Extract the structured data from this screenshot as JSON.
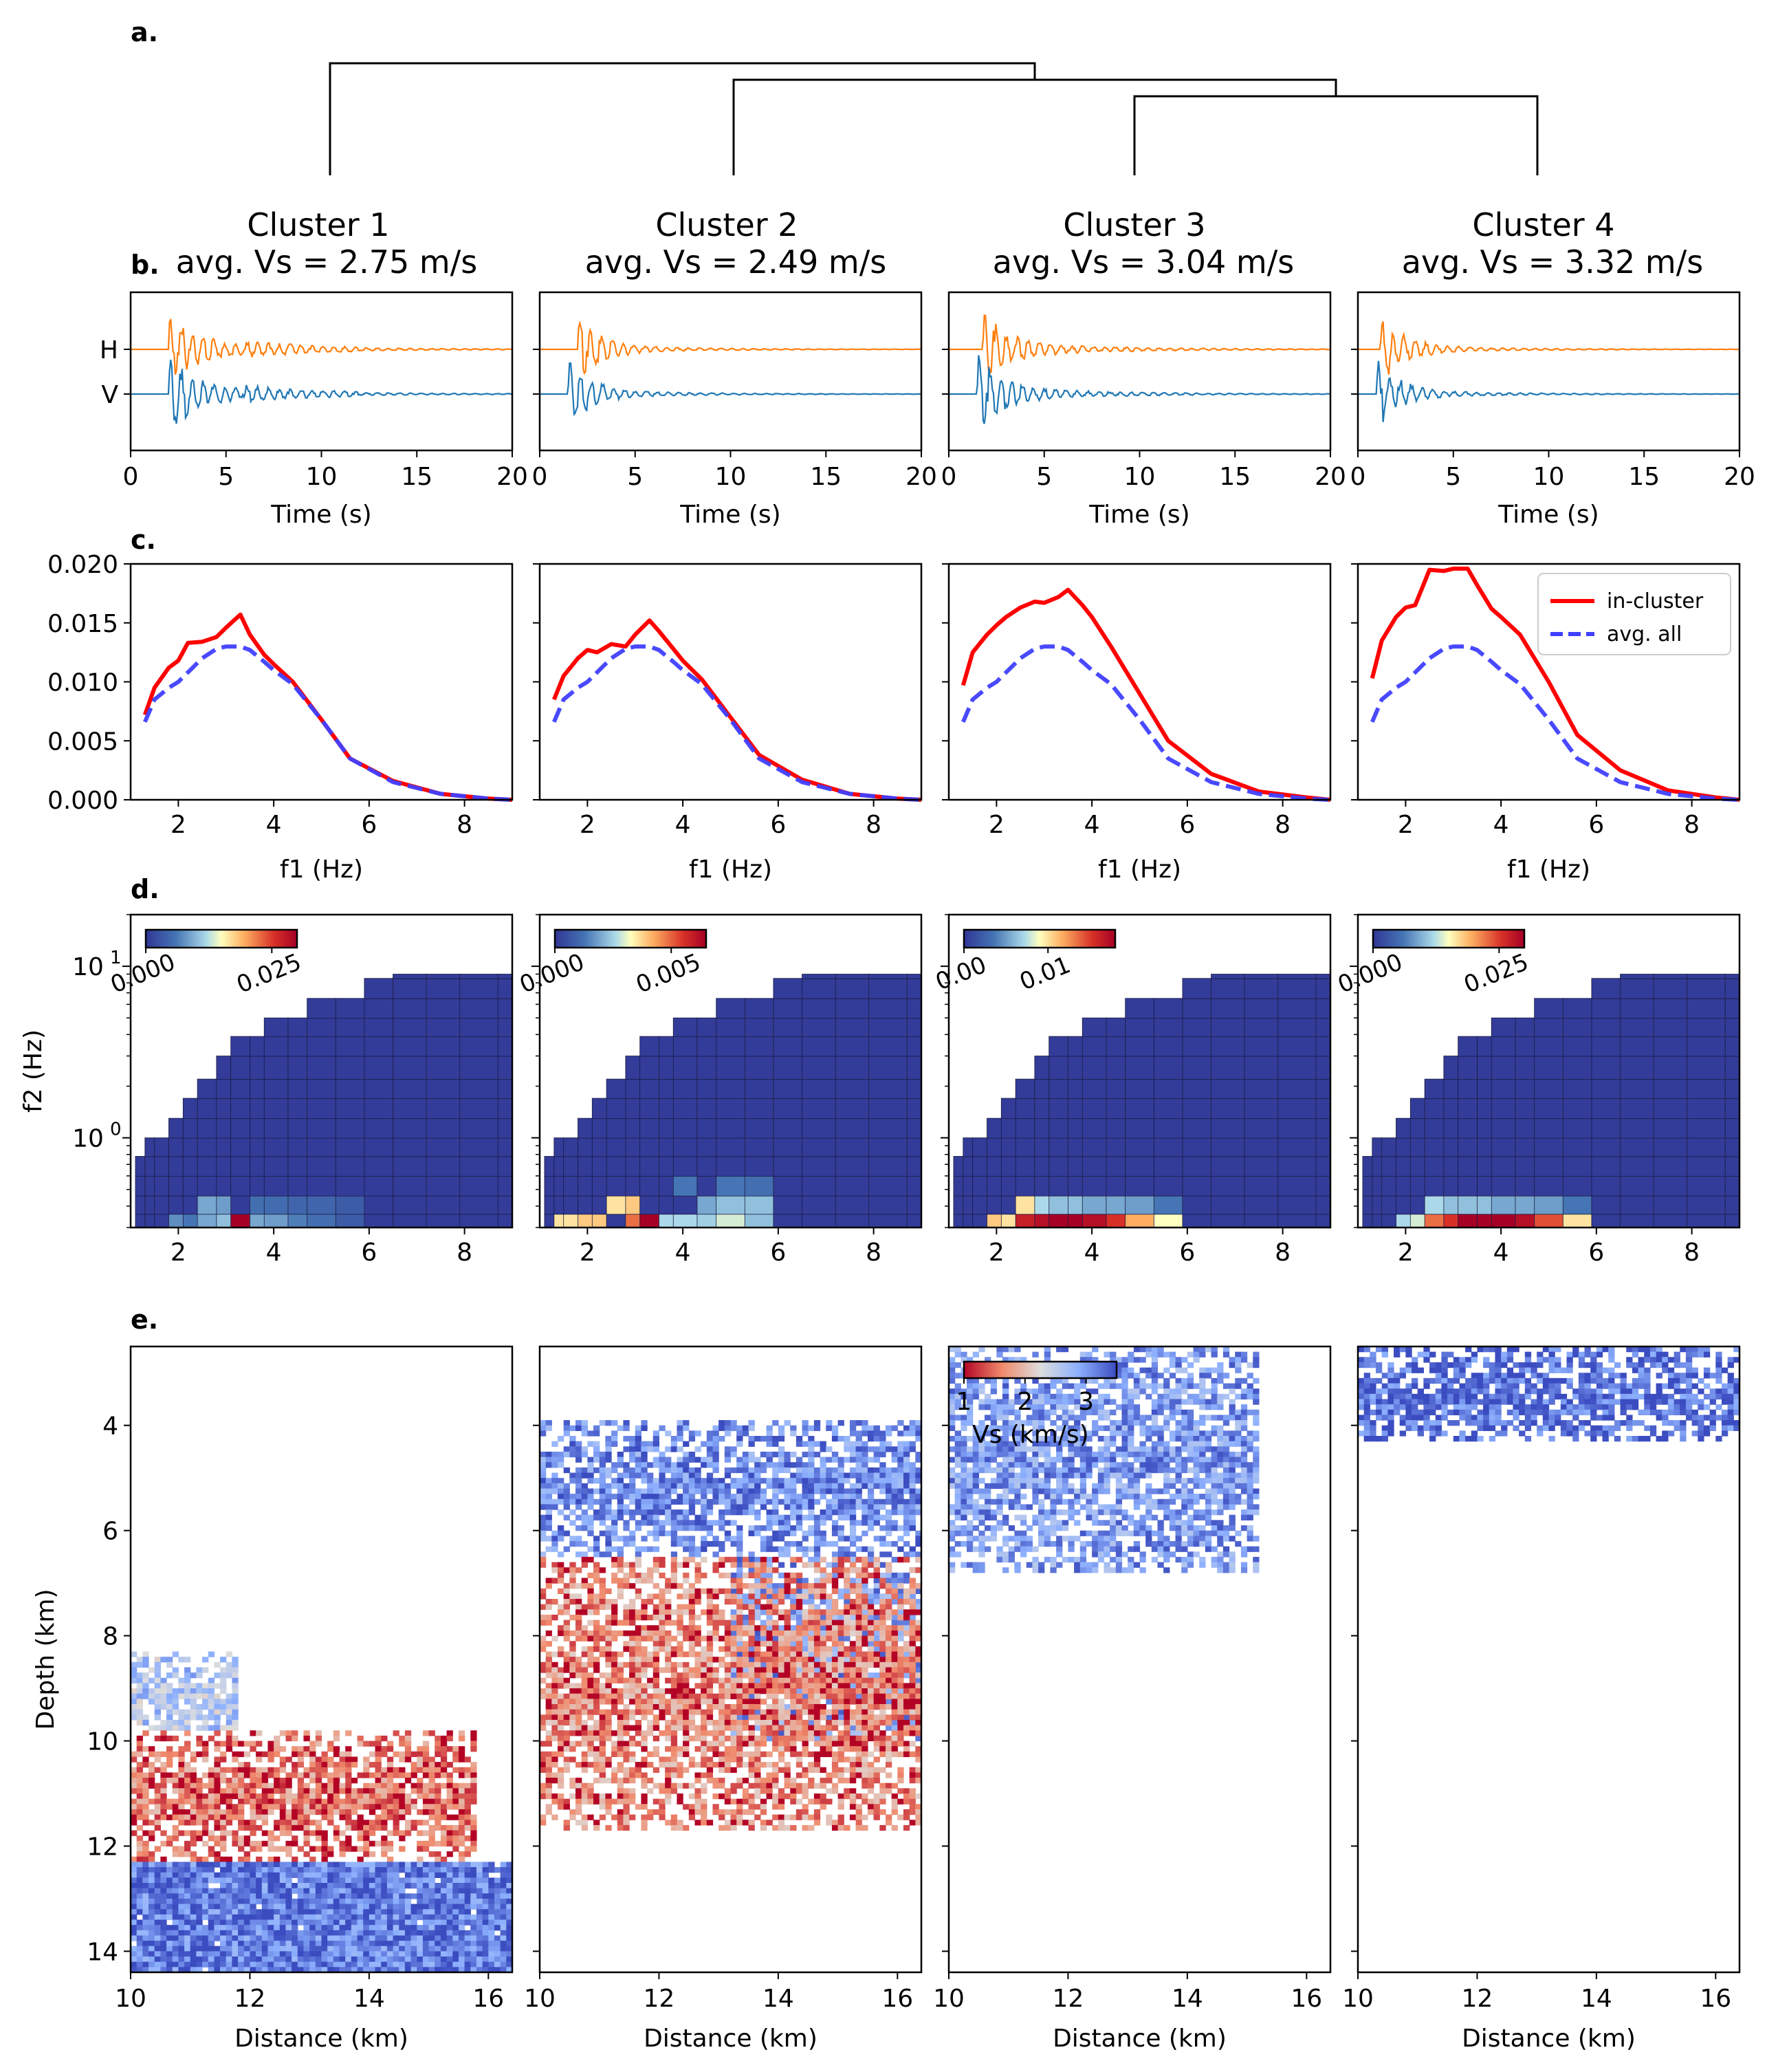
{
  "panel_labels": {
    "a": "a.",
    "b": "b.",
    "c": "c.",
    "d": "d.",
    "e": "e."
  },
  "clusters": [
    {
      "title": "Cluster 1",
      "subtitle": "avg. Vs = 2.75 m/s"
    },
    {
      "title": "Cluster 2",
      "subtitle": "avg. Vs = 2.49 m/s"
    },
    {
      "title": "Cluster 3",
      "subtitle": "avg. Vs = 3.04 m/s"
    },
    {
      "title": "Cluster 4",
      "subtitle": "avg. Vs = 3.32 m/s"
    }
  ],
  "colors": {
    "horizontal": "#ff7f0e",
    "vertical": "#1f77b4",
    "in_cluster": "#ff0000",
    "avg_all": "#3f3fff"
  },
  "chart_data": [
    {
      "type": "dendrogram",
      "leaves": [
        "Cluster 1",
        "Cluster 2",
        "Cluster 3",
        "Cluster 4"
      ],
      "merges": [
        {
          "join": [
            "Cluster 3",
            "Cluster 4"
          ],
          "height": 0.52
        },
        {
          "join": [
            "Cluster 2",
            "Cluster 3+4"
          ],
          "height": 0.64
        },
        {
          "join": [
            "Cluster 1",
            "Cluster 2+3+4"
          ],
          "height": 0.73
        }
      ]
    },
    {
      "type": "line",
      "panel": "b",
      "title": "",
      "xlabel": "Time (s)",
      "xlim": [
        0,
        20
      ],
      "xticks": [
        "0",
        "5",
        "10",
        "15",
        "20"
      ],
      "yticklabels": [
        "H",
        "V"
      ],
      "series": [
        {
          "name": "H",
          "component": "horizontal",
          "onset_s": [
            2.0,
            2.0,
            1.8,
            1.2
          ]
        },
        {
          "name": "V",
          "component": "vertical",
          "onset_s": [
            2.0,
            1.5,
            1.5,
            1.0
          ]
        }
      ]
    },
    {
      "type": "line",
      "panel": "c",
      "xlabel": "f1 (Hz)",
      "xlim": [
        1,
        9
      ],
      "ylim": [
        0,
        0.02
      ],
      "xticks": [
        "2",
        "4",
        "6",
        "8"
      ],
      "yticks": [
        "0.000",
        "0.005",
        "0.010",
        "0.015",
        "0.020"
      ],
      "legend": {
        "position": "top-right",
        "entries": [
          "in-cluster",
          "avg. all"
        ]
      },
      "x": [
        1.3,
        1.5,
        1.8,
        2.0,
        2.2,
        2.5,
        2.8,
        3.0,
        3.3,
        3.5,
        3.8,
        4.0,
        4.4,
        5.0,
        5.6,
        6.5,
        7.5,
        8.5,
        9.0
      ],
      "avg_all": [
        0.0066,
        0.0085,
        0.0095,
        0.01,
        0.0108,
        0.012,
        0.0128,
        0.013,
        0.013,
        0.0127,
        0.0117,
        0.011,
        0.0098,
        0.0068,
        0.0035,
        0.0015,
        0.0005,
        0.0001,
        0.0
      ],
      "series": [
        {
          "name": "in-cluster",
          "cluster": "Cluster 1",
          "values": [
            0.0072,
            0.0095,
            0.0112,
            0.0118,
            0.0133,
            0.0134,
            0.0138,
            0.0146,
            0.0157,
            0.014,
            0.0123,
            0.0115,
            0.01,
            0.0068,
            0.0035,
            0.0016,
            0.0005,
            0.0001,
            0.0
          ]
        },
        {
          "name": "in-cluster",
          "cluster": "Cluster 2",
          "values": [
            0.0085,
            0.0105,
            0.012,
            0.0127,
            0.0125,
            0.0132,
            0.013,
            0.014,
            0.0152,
            0.0143,
            0.0128,
            0.0118,
            0.0102,
            0.007,
            0.0038,
            0.0017,
            0.0005,
            0.0001,
            0.0
          ]
        },
        {
          "name": "in-cluster",
          "cluster": "Cluster 3",
          "values": [
            0.0097,
            0.0125,
            0.014,
            0.0148,
            0.0155,
            0.0163,
            0.0168,
            0.0167,
            0.0172,
            0.0178,
            0.0165,
            0.0155,
            0.013,
            0.009,
            0.005,
            0.0022,
            0.0007,
            0.0002,
            0.0
          ]
        },
        {
          "name": "in-cluster",
          "cluster": "Cluster 4",
          "values": [
            0.0103,
            0.0135,
            0.0155,
            0.0163,
            0.0165,
            0.0195,
            0.0194,
            0.0196,
            0.0196,
            0.0182,
            0.0162,
            0.0155,
            0.014,
            0.01,
            0.0055,
            0.0025,
            0.0008,
            0.0002,
            0.0
          ]
        }
      ]
    },
    {
      "type": "heatmap",
      "panel": "d",
      "xlabel": "",
      "ylabel": "f2 (Hz)",
      "yscale": "log",
      "ylim": [
        0.3,
        20
      ],
      "xlim": [
        1,
        9
      ],
      "xticks": [
        "2",
        "4",
        "6",
        "8"
      ],
      "yticks": [
        "10^0",
        "10^1"
      ],
      "colormap": "RdYlBu_r",
      "colorbars": [
        {
          "cluster": "Cluster 1",
          "ticks": [
            "0.000",
            "0.025"
          ],
          "vmax": 0.03
        },
        {
          "cluster": "Cluster 2",
          "ticks": [
            "0.000",
            "0.005"
          ],
          "vmax": 0.0065
        },
        {
          "cluster": "Cluster 3",
          "ticks": [
            "0.00",
            "0.01"
          ],
          "vmax": 0.018
        },
        {
          "cluster": "Cluster 4",
          "ticks": [
            "0.000",
            "0.025"
          ],
          "vmax": 0.03
        }
      ],
      "cell_levels": [
        [
          {
            "x": 3.3,
            "row": 0,
            "level": 1.0
          },
          {
            "x": 2.0,
            "row": 0,
            "level": 0.25
          },
          {
            "x": 2.3,
            "row": 0,
            "level": 0.2
          },
          {
            "x": 2.6,
            "row": 0,
            "level": 0.3
          },
          {
            "x": 2.9,
            "row": 0,
            "level": 0.35
          },
          {
            "x": 3.6,
            "row": 0,
            "level": 0.3
          },
          {
            "x": 4.0,
            "row": 0,
            "level": 0.28
          },
          {
            "x": 4.5,
            "row": 0,
            "level": 0.22
          },
          {
            "x": 5.0,
            "row": 0,
            "level": 0.18
          },
          {
            "x": 5.6,
            "row": 0,
            "level": 0.12
          },
          {
            "x": 2.6,
            "row": 1,
            "level": 0.3
          },
          {
            "x": 3.0,
            "row": 1,
            "level": 0.28
          },
          {
            "x": 3.6,
            "row": 1,
            "level": 0.18
          },
          {
            "x": 4.0,
            "row": 1,
            "level": 0.17
          },
          {
            "x": 4.5,
            "row": 1,
            "level": 0.15
          },
          {
            "x": 5.0,
            "row": 1,
            "level": 0.15
          },
          {
            "x": 5.6,
            "row": 1,
            "level": 0.12
          },
          {
            "x": 6.5,
            "row": 1,
            "level": 0.1
          }
        ],
        [
          {
            "x": 3.3,
            "row": 0,
            "level": 1.0
          },
          {
            "x": 3.0,
            "row": 0,
            "level": 0.75
          },
          {
            "x": 2.1,
            "row": 0,
            "level": 0.6
          },
          {
            "x": 1.5,
            "row": 0,
            "level": 0.55
          },
          {
            "x": 5.0,
            "row": 0,
            "level": 0.45
          },
          {
            "x": 5.6,
            "row": 0,
            "level": 0.35
          },
          {
            "x": 3.6,
            "row": 0,
            "level": 0.4
          },
          {
            "x": 4.0,
            "row": 0,
            "level": 0.4
          },
          {
            "x": 4.5,
            "row": 0,
            "level": 0.38
          },
          {
            "x": 2.6,
            "row": 1,
            "level": 0.55
          },
          {
            "x": 3.0,
            "row": 1,
            "level": 0.6
          },
          {
            "x": 5.0,
            "row": 1,
            "level": 0.35
          },
          {
            "x": 5.6,
            "row": 1,
            "level": 0.35
          },
          {
            "x": 4.5,
            "row": 1,
            "level": 0.3
          },
          {
            "x": 6.5,
            "row": 1,
            "level": 0.2
          },
          {
            "x": 4.0,
            "row": 2,
            "level": 0.2
          },
          {
            "x": 5.0,
            "row": 2,
            "level": 0.2
          },
          {
            "x": 5.6,
            "row": 2,
            "level": 0.18
          }
        ],
        [
          {
            "x": 3.3,
            "row": 0,
            "level": 1.0
          },
          {
            "x": 3.6,
            "row": 0,
            "level": 1.0
          },
          {
            "x": 3.0,
            "row": 0,
            "level": 0.95
          },
          {
            "x": 2.6,
            "row": 0,
            "level": 0.9
          },
          {
            "x": 4.0,
            "row": 0,
            "level": 0.95
          },
          {
            "x": 4.5,
            "row": 0,
            "level": 0.85
          },
          {
            "x": 5.0,
            "row": 0,
            "level": 0.65
          },
          {
            "x": 2.3,
            "row": 0,
            "level": 0.55
          },
          {
            "x": 2.0,
            "row": 0,
            "level": 0.6
          },
          {
            "x": 5.6,
            "row": 0,
            "level": 0.5
          },
          {
            "x": 2.6,
            "row": 1,
            "level": 0.55
          },
          {
            "x": 3.0,
            "row": 1,
            "level": 0.4
          },
          {
            "x": 3.3,
            "row": 1,
            "level": 0.35
          },
          {
            "x": 3.6,
            "row": 1,
            "level": 0.35
          },
          {
            "x": 4.0,
            "row": 1,
            "level": 0.3
          },
          {
            "x": 4.5,
            "row": 1,
            "level": 0.3
          },
          {
            "x": 5.0,
            "row": 1,
            "level": 0.28
          },
          {
            "x": 5.6,
            "row": 1,
            "level": 0.2
          }
        ],
        [
          {
            "x": 3.3,
            "row": 0,
            "level": 1.0
          },
          {
            "x": 3.6,
            "row": 0,
            "level": 1.0
          },
          {
            "x": 4.0,
            "row": 0,
            "level": 1.0
          },
          {
            "x": 4.5,
            "row": 0,
            "level": 0.95
          },
          {
            "x": 5.0,
            "row": 0,
            "level": 0.8
          },
          {
            "x": 3.0,
            "row": 0,
            "level": 0.85
          },
          {
            "x": 2.6,
            "row": 0,
            "level": 0.75
          },
          {
            "x": 5.6,
            "row": 0,
            "level": 0.55
          },
          {
            "x": 2.3,
            "row": 0,
            "level": 0.45
          },
          {
            "x": 2.0,
            "row": 0,
            "level": 0.4
          },
          {
            "x": 2.6,
            "row": 1,
            "level": 0.4
          },
          {
            "x": 3.0,
            "row": 1,
            "level": 0.35
          },
          {
            "x": 3.3,
            "row": 1,
            "level": 0.35
          },
          {
            "x": 3.6,
            "row": 1,
            "level": 0.35
          },
          {
            "x": 4.0,
            "row": 1,
            "level": 0.3
          },
          {
            "x": 4.5,
            "row": 1,
            "level": 0.3
          },
          {
            "x": 5.0,
            "row": 1,
            "level": 0.28
          },
          {
            "x": 5.6,
            "row": 1,
            "level": 0.2
          }
        ]
      ]
    },
    {
      "type": "heatmap",
      "panel": "e",
      "xlabel": "Distance (km)",
      "ylabel": "Depth (km)",
      "xlim": [
        10,
        16.4
      ],
      "ylim": [
        14.4,
        2.5
      ],
      "xticks": [
        "10",
        "12",
        "14",
        "16"
      ],
      "yticks": [
        "4",
        "6",
        "8",
        "10",
        "12",
        "14"
      ],
      "colormap": "coolwarm_r",
      "colorbar": {
        "label": "Vs (km/s)",
        "ticks": [
          "1",
          "2",
          "3"
        ],
        "range": [
          1,
          3.5
        ]
      },
      "regions": [
        [
          {
            "label": "mid-depth blue band",
            "x": [
              10,
              11.8
            ],
            "depth": [
              8.3,
              9.8
            ],
            "vs": 2.6
          },
          {
            "label": "low-velocity zone",
            "x": [
              10,
              15.8
            ],
            "depth": [
              9.8,
              12.3
            ],
            "vs": 1.6
          },
          {
            "label": "deep high-velocity",
            "x": [
              10,
              16.4
            ],
            "depth": [
              12.3,
              14.4
            ],
            "vs": 3.2
          }
        ],
        [
          {
            "label": "shallow high-velocity",
            "x": [
              10,
              16.4
            ],
            "depth": [
              3.9,
              6.5
            ],
            "vs": 3.1
          },
          {
            "label": "central high-velocity",
            "x": [
              13.2,
              16.4
            ],
            "depth": [
              6.5,
              10.0
            ],
            "vs": 3.0
          },
          {
            "label": "low-velocity zone",
            "x": [
              10,
              16.4
            ],
            "depth": [
              6.5,
              11.7
            ],
            "vs": 1.7
          }
        ],
        [
          {
            "label": "shallow high-velocity",
            "x": [
              10,
              15.2
            ],
            "depth": [
              2.5,
              6.8
            ],
            "vs": 3.0
          }
        ],
        [
          {
            "label": "near-surface high-velocity",
            "x": [
              10,
              16.4
            ],
            "depth": [
              2.5,
              4.3
            ],
            "vs": 3.3
          }
        ]
      ]
    }
  ]
}
